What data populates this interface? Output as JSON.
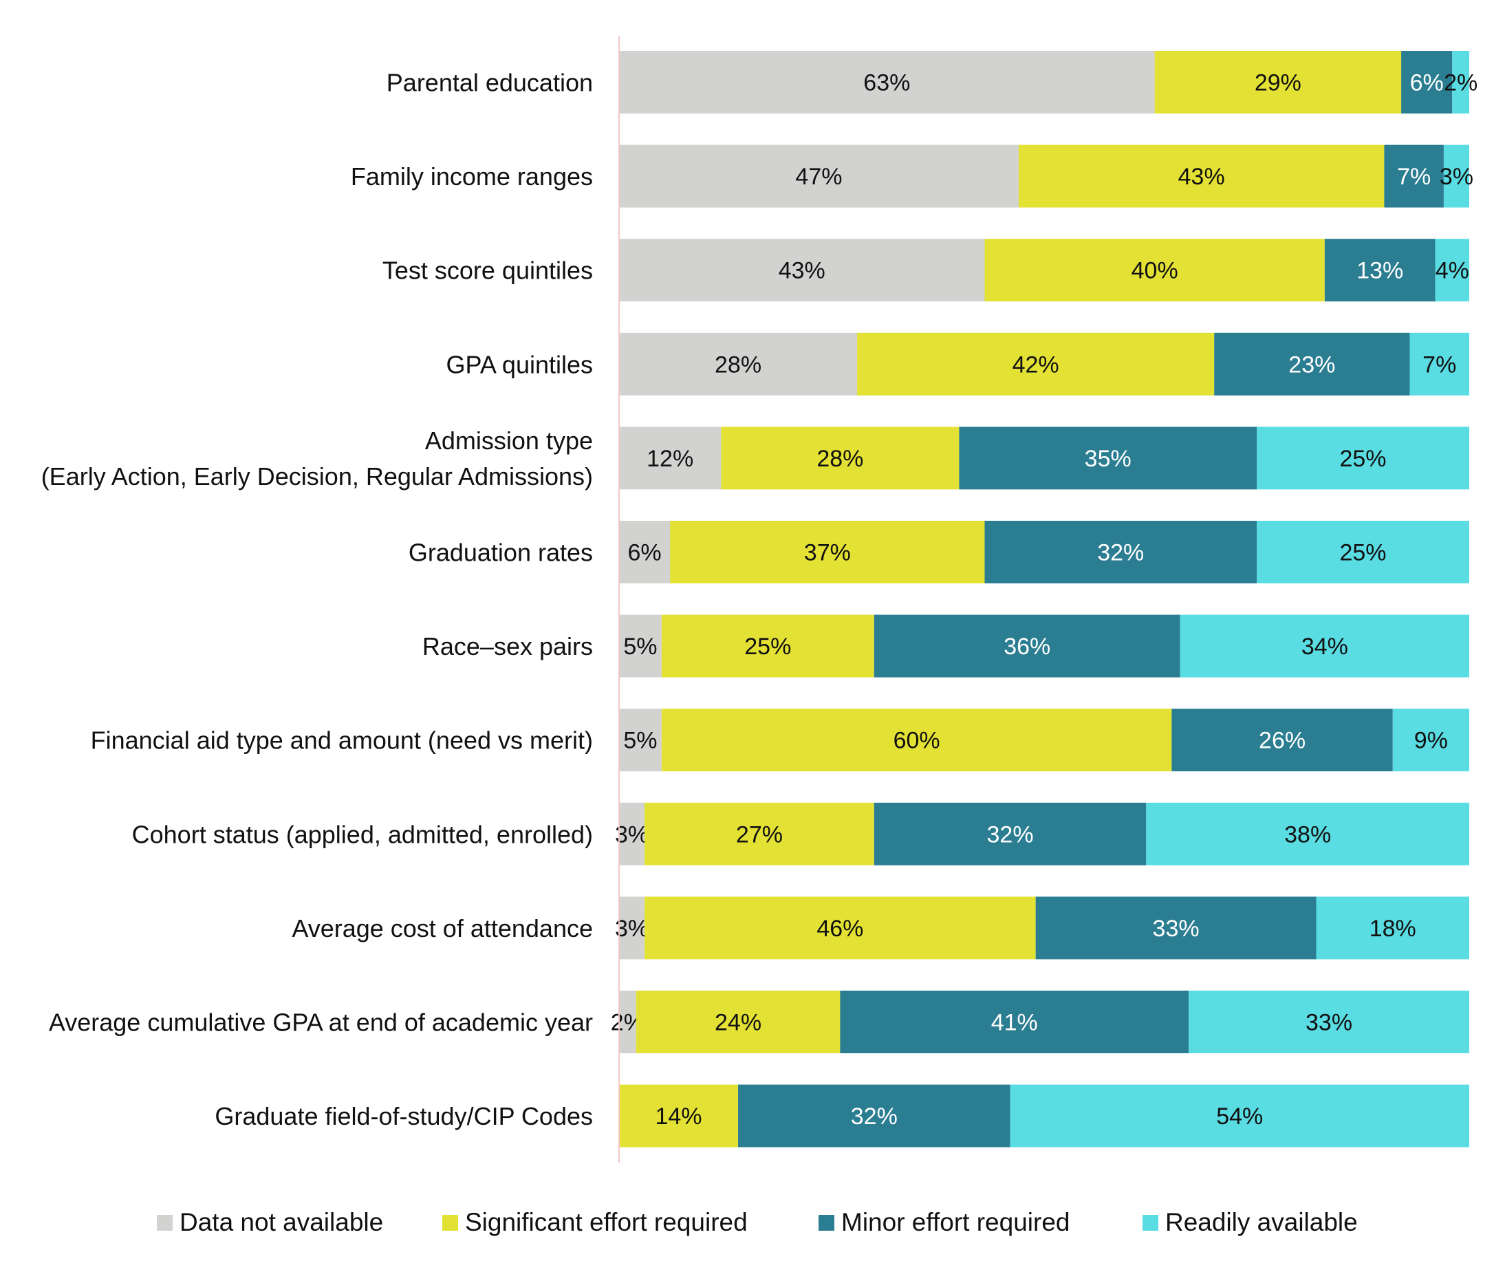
{
  "chart_data": {
    "type": "bar",
    "orientation": "horizontal",
    "stacked": true,
    "normalized": true,
    "xlim": [
      0,
      100
    ],
    "grid": false,
    "legend_position": "bottom",
    "title": "",
    "xlabel": "",
    "ylabel": "",
    "categories": [
      "Parental education",
      "Family income ranges",
      "Test score quintiles",
      "GPA quintiles",
      [
        "Admission type",
        "(Early Action, Early Decision, Regular Admissions)"
      ],
      "Graduation rates",
      "Race–sex pairs",
      "Financial aid type and amount (need vs merit)",
      "Cohort status (applied, admitted, enrolled)",
      "Average cost of attendance",
      "Average cumulative GPA at end of academic year",
      "Graduate field-of-study/CIP Codes"
    ],
    "series": [
      {
        "name": "Data not available",
        "color": "#d2d3d1",
        "label_color": "#111111",
        "values": [
          63,
          47,
          43,
          28,
          12,
          6,
          5,
          5,
          3,
          3,
          2,
          0
        ]
      },
      {
        "name": "Significant effort required",
        "color": "#e4e135",
        "label_color": "#111111",
        "values": [
          29,
          43,
          40,
          42,
          28,
          37,
          25,
          60,
          27,
          46,
          24,
          14
        ]
      },
      {
        "name": "Minor effort required",
        "color": "#2b7d91",
        "label_color": "#ffffff",
        "values": [
          6,
          7,
          13,
          23,
          35,
          32,
          36,
          26,
          32,
          33,
          41,
          32
        ]
      },
      {
        "name": "Readily available",
        "color": "#5adce3",
        "label_color": "#111111",
        "values": [
          2,
          3,
          4,
          7,
          25,
          25,
          34,
          9,
          38,
          18,
          33,
          54
        ]
      }
    ]
  },
  "axis_color": "#f3c9c6"
}
